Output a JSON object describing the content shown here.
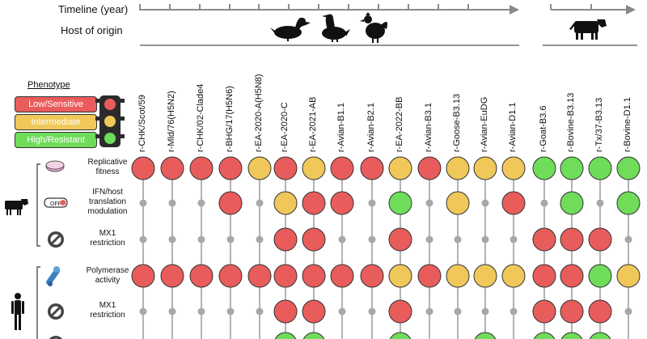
{
  "header": {
    "timeline_label": "Timeline (year)",
    "host_label": "Host of origin"
  },
  "legend": {
    "title": "Phenotype",
    "items": [
      {
        "label": "Low/Sensitive",
        "color": "#e95c5c",
        "text_color": "#ffffff"
      },
      {
        "label": "Intermediate",
        "color": "#f0c85a",
        "text_color": "#ffffff"
      },
      {
        "label": "High/Resistant",
        "color": "#6fdc5a",
        "text_color": "#ffffff"
      }
    ]
  },
  "hosts": {
    "avian": [
      "duck-icon",
      "goose-icon",
      "chicken-icon"
    ],
    "mammal": [
      "cow-icon"
    ]
  },
  "strains": [
    "r-CHK/Scot/59",
    "r-Mld/76(H5N2)",
    "r-CHK/02-Clade4",
    "r-BHG/17(H5N6)",
    "r-EA-2020-A(H5N8)",
    "r-EA-2020-C",
    "r-EA-2021-AB",
    "r-Avian-B1.1",
    "r-Avian-B2.1",
    "r-EA-2022-BB",
    "r-Avian-B3.1",
    "r-Goose-B3.13",
    "r-Avian-EuDG",
    "r-Avian-D1.1",
    "r-Goat-B3.6",
    "r-Bovine-B3.13",
    "r-Tx/37-B3.13",
    "r-Bovine-D1.1"
  ],
  "groups": [
    {
      "name": "bovine",
      "icon": "cow-icon"
    },
    {
      "name": "human",
      "icon": "human-icon"
    }
  ],
  "rows": [
    {
      "label_lines": [
        "Replicative",
        "fitness"
      ],
      "icon": "flask-icon",
      "values": [
        "R",
        "R",
        "R",
        "R",
        "Y",
        "R",
        "Y",
        "R",
        "R",
        "Y",
        "R",
        "Y",
        "Y",
        "Y",
        "G",
        "G",
        "G",
        "G"
      ]
    },
    {
      "label_lines": [
        "IFN/host",
        "translation",
        "modulation"
      ],
      "icon": "off-switch-icon",
      "icon_text": "OFF",
      "values": [
        "-",
        "-",
        "-",
        "R",
        "-",
        "Y",
        "R",
        "R",
        "-",
        "G",
        "-",
        "Y",
        "-",
        "R",
        "-",
        "G",
        "-",
        "G"
      ]
    },
    {
      "label_lines": [
        "MX1",
        "restriction"
      ],
      "icon": "no-sign-icon",
      "values": [
        "-",
        "-",
        "-",
        "-",
        "-",
        "R",
        "R",
        "-",
        "-",
        "R",
        "-",
        "-",
        "-",
        "-",
        "R",
        "R",
        "R",
        "-"
      ]
    },
    {
      "label_lines": [
        "Polymerase",
        "activity"
      ],
      "icon": "polymerase-icon",
      "values": [
        "R",
        "R",
        "R",
        "R",
        "R",
        "R",
        "R",
        "R",
        "R",
        "Y",
        "R",
        "Y",
        "Y",
        "Y",
        "R",
        "R",
        "G",
        "Y"
      ]
    },
    {
      "label_lines": [
        "MX1",
        "restriction"
      ],
      "icon": "no-sign-icon",
      "values": [
        "-",
        "-",
        "-",
        "-",
        "-",
        "R",
        "R",
        "-",
        "-",
        "R",
        "-",
        "-",
        "-",
        "-",
        "R",
        "R",
        "R",
        "-"
      ]
    },
    {
      "label_lines": [
        ""
      ],
      "icon": "no-sign-icon",
      "values": [
        "-",
        "-",
        "-",
        "-",
        "-",
        "G",
        "G",
        "-",
        "-",
        "G",
        "-",
        "-",
        "G",
        "-",
        "G",
        "G",
        "G",
        "-"
      ]
    }
  ],
  "colors": {
    "R": "#e95c5c",
    "Y": "#f0c85a",
    "G": "#6fdc5a",
    "dot": "#a8a8a8",
    "line": "#9a9a9a"
  }
}
